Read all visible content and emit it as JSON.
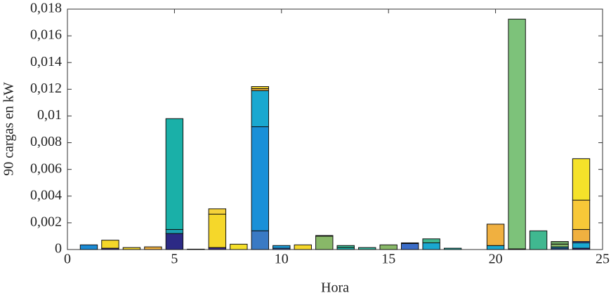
{
  "chart_data": {
    "type": "stacked-bar",
    "xlabel": "Hora",
    "ylabel": "90 cargas en kW",
    "xlim": [
      0,
      25
    ],
    "xticks": [
      0,
      5,
      10,
      15,
      20,
      25
    ],
    "ylim": [
      0,
      0.018
    ],
    "yticks": [
      0,
      {
        "value": 0.002,
        "label": "0,002"
      },
      {
        "value": 0.004,
        "label": "0,004"
      },
      {
        "value": 0.006,
        "label": "0,006"
      },
      {
        "value": 0.008,
        "label": "0,008"
      },
      {
        "value": 0.01,
        "label": "0,01"
      },
      {
        "value": 0.012,
        "label": "0,012"
      },
      {
        "value": 0.014,
        "label": "0,014"
      },
      {
        "value": 0.016,
        "label": "0,016"
      },
      {
        "value": 0.018,
        "label": "0,018"
      }
    ],
    "bars": [
      {
        "x": 1,
        "segments": [
          {
            "value": 0.00035,
            "color": "#1a8ad4"
          }
        ]
      },
      {
        "x": 2,
        "segments": [
          {
            "value": 0.0001,
            "color": "#3a2a8a"
          },
          {
            "value": 0.0006,
            "color": "#f5d72a"
          }
        ]
      },
      {
        "x": 3,
        "segments": [
          {
            "value": 0.00015,
            "color": "#f5d72a"
          }
        ]
      },
      {
        "x": 4,
        "segments": [
          {
            "value": 0.0002,
            "color": "#f0b040"
          }
        ]
      },
      {
        "x": 5,
        "segments": [
          {
            "value": 0.0012,
            "color": "#2c2a85"
          },
          {
            "value": 0.0003,
            "color": "#1aa0b0"
          },
          {
            "value": 0.0083,
            "color": "#1ab0a8"
          }
        ]
      },
      {
        "x": 6,
        "segments": [
          {
            "value": 3e-05,
            "color": "#1aa0b0"
          }
        ]
      },
      {
        "x": 7,
        "segments": [
          {
            "value": 0.00015,
            "color": "#3a2a8a"
          },
          {
            "value": 0.0025,
            "color": "#f5d72a"
          },
          {
            "value": 0.0004,
            "color": "#f5d23a"
          }
        ]
      },
      {
        "x": 8,
        "segments": [
          {
            "value": 0.0004,
            "color": "#f5df2a"
          }
        ]
      },
      {
        "x": 9,
        "segments": [
          {
            "value": 0.0014,
            "color": "#3a7ac4"
          },
          {
            "value": 0.0078,
            "color": "#1a90d8"
          },
          {
            "value": 0.0027,
            "color": "#1aa8d0"
          },
          {
            "value": 0.00015,
            "color": "#f0b040"
          },
          {
            "value": 0.00015,
            "color": "#f5d72a"
          }
        ]
      },
      {
        "x": 10,
        "segments": [
          {
            "value": 0.0001,
            "color": "#3a6cc8"
          },
          {
            "value": 0.0002,
            "color": "#1a9ad8"
          }
        ]
      },
      {
        "x": 11,
        "segments": [
          {
            "value": 0.00035,
            "color": "#f5d72a"
          }
        ]
      },
      {
        "x": 12,
        "segments": [
          {
            "value": 0.001,
            "color": "#88b868"
          },
          {
            "value": 5e-05,
            "color": "#f0b040"
          }
        ]
      },
      {
        "x": 13,
        "segments": [
          {
            "value": 0.00015,
            "color": "#1ab0a8"
          },
          {
            "value": 0.00015,
            "color": "#3ab890"
          }
        ]
      },
      {
        "x": 14,
        "segments": [
          {
            "value": 0.00015,
            "color": "#3ab8a0"
          }
        ]
      },
      {
        "x": 15,
        "segments": [
          {
            "value": 0.00035,
            "color": "#88b868"
          }
        ]
      },
      {
        "x": 16,
        "segments": [
          {
            "value": 0.00045,
            "color": "#3a6cc8"
          },
          {
            "value": 5e-05,
            "color": "#1a9ad8"
          }
        ]
      },
      {
        "x": 17,
        "segments": [
          {
            "value": 0.0005,
            "color": "#1aa8d0"
          },
          {
            "value": 0.0003,
            "color": "#40b890"
          }
        ]
      },
      {
        "x": 18,
        "segments": [
          {
            "value": 0.0001,
            "color": "#1ab0a8"
          }
        ]
      },
      {
        "x": 20,
        "segments": [
          {
            "value": 0.0003,
            "color": "#1aa8d0"
          },
          {
            "value": 0.0016,
            "color": "#f0b040"
          }
        ]
      },
      {
        "x": 21,
        "segments": [
          {
            "value": 5e-05,
            "color": "#1ab0a8"
          },
          {
            "value": 0.0172,
            "color": "#7dc27a"
          }
        ]
      },
      {
        "x": 22,
        "segments": [
          {
            "value": 0.0014,
            "color": "#40b890"
          }
        ]
      },
      {
        "x": 23,
        "segments": [
          {
            "value": 0.0001,
            "color": "#3a6cc8"
          },
          {
            "value": 0.0001,
            "color": "#1aa8d0"
          },
          {
            "value": 0.0002,
            "color": "#88b868"
          },
          {
            "value": 0.0002,
            "color": "#6aa060"
          }
        ]
      },
      {
        "x": 24,
        "segments": [
          {
            "value": 0.0001,
            "color": "#3a2a8a"
          },
          {
            "value": 0.0004,
            "color": "#1aa8d0"
          },
          {
            "value": 0.0001,
            "color": "#3a6cc8"
          },
          {
            "value": 0.0009,
            "color": "#f0b040"
          },
          {
            "value": 0.0022,
            "color": "#f8c838"
          },
          {
            "value": 0.0031,
            "color": "#f5e22a"
          }
        ]
      }
    ]
  }
}
